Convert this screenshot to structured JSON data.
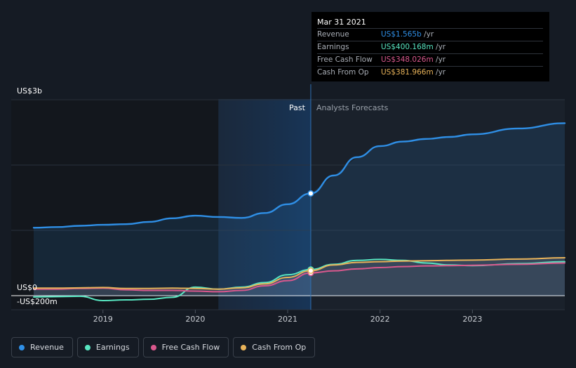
{
  "chart_data": {
    "type": "line",
    "y_axis_labels": [
      {
        "text": "US$3b",
        "value": 3000
      },
      {
        "text": "US$0",
        "value": 0
      },
      {
        "text": "-US$200m",
        "value": -200
      }
    ],
    "ylim": [
      -200,
      3000
    ],
    "gridline_values": [
      3000,
      2000,
      1000,
      0
    ],
    "x_ticks": [
      "2019",
      "2020",
      "2021",
      "2022",
      "2023"
    ],
    "x_tick_values": [
      2019.0,
      2020.0,
      2021.0,
      2022.0,
      2023.0
    ],
    "xlim": [
      2018.0,
      2024.0
    ],
    "divider_x": 2021.25,
    "highlight_start_x": 2020.25,
    "past_label": "Past",
    "forecast_label": "Analysts Forecasts",
    "grid": true,
    "series": [
      {
        "name": "Revenue",
        "color": "#2f8fe6",
        "area": true,
        "points": [
          [
            2018.25,
            1040
          ],
          [
            2018.5,
            1050
          ],
          [
            2018.75,
            1070
          ],
          [
            2019.0,
            1085
          ],
          [
            2019.25,
            1095
          ],
          [
            2019.5,
            1130
          ],
          [
            2019.75,
            1185
          ],
          [
            2020.0,
            1225
          ],
          [
            2020.25,
            1205
          ],
          [
            2020.5,
            1190
          ],
          [
            2020.75,
            1265
          ],
          [
            2021.0,
            1400
          ],
          [
            2021.25,
            1565
          ],
          [
            2021.5,
            1840
          ],
          [
            2021.75,
            2120
          ],
          [
            2022.0,
            2290
          ],
          [
            2022.25,
            2360
          ],
          [
            2022.5,
            2400
          ],
          [
            2022.75,
            2430
          ],
          [
            2023.0,
            2470
          ],
          [
            2023.5,
            2560
          ],
          [
            2024.0,
            2640
          ]
        ]
      },
      {
        "name": "Earnings",
        "color": "#58e6c1",
        "area": false,
        "points": [
          [
            2018.25,
            -20
          ],
          [
            2018.5,
            -15
          ],
          [
            2018.75,
            -10
          ],
          [
            2019.0,
            -75
          ],
          [
            2019.25,
            -65
          ],
          [
            2019.5,
            -55
          ],
          [
            2019.75,
            -25
          ],
          [
            2020.0,
            130
          ],
          [
            2020.25,
            100
          ],
          [
            2020.5,
            130
          ],
          [
            2020.75,
            200
          ],
          [
            2021.0,
            320
          ],
          [
            2021.25,
            400.168
          ],
          [
            2021.5,
            480
          ],
          [
            2021.75,
            540
          ],
          [
            2022.0,
            555
          ],
          [
            2022.25,
            540
          ],
          [
            2022.5,
            500
          ],
          [
            2022.75,
            470
          ],
          [
            2023.0,
            460
          ],
          [
            2023.5,
            490
          ],
          [
            2024.0,
            520
          ]
        ]
      },
      {
        "name": "Free Cash Flow",
        "color": "#d9588d",
        "area": false,
        "points": [
          [
            2018.25,
            100
          ],
          [
            2018.5,
            100
          ],
          [
            2018.75,
            110
          ],
          [
            2019.0,
            115
          ],
          [
            2019.25,
            90
          ],
          [
            2019.5,
            80
          ],
          [
            2019.75,
            80
          ],
          [
            2020.0,
            70
          ],
          [
            2020.25,
            60
          ],
          [
            2020.5,
            80
          ],
          [
            2020.75,
            150
          ],
          [
            2021.0,
            230
          ],
          [
            2021.25,
            348.026
          ],
          [
            2021.5,
            380
          ],
          [
            2021.75,
            410
          ],
          [
            2022.0,
            430
          ],
          [
            2022.25,
            445
          ],
          [
            2022.5,
            455
          ],
          [
            2022.75,
            460
          ],
          [
            2023.0,
            465
          ],
          [
            2023.5,
            480
          ],
          [
            2024.0,
            500
          ]
        ]
      },
      {
        "name": "Cash From Op",
        "color": "#e8b35a",
        "area": false,
        "points": [
          [
            2018.25,
            115
          ],
          [
            2018.5,
            115
          ],
          [
            2018.75,
            120
          ],
          [
            2019.0,
            125
          ],
          [
            2019.25,
            110
          ],
          [
            2019.5,
            110
          ],
          [
            2019.75,
            115
          ],
          [
            2020.0,
            110
          ],
          [
            2020.25,
            100
          ],
          [
            2020.5,
            120
          ],
          [
            2020.75,
            180
          ],
          [
            2021.0,
            280
          ],
          [
            2021.25,
            381.966
          ],
          [
            2021.5,
            470
          ],
          [
            2021.75,
            510
          ],
          [
            2022.0,
            520
          ],
          [
            2022.25,
            530
          ],
          [
            2022.5,
            535
          ],
          [
            2022.75,
            540
          ],
          [
            2023.0,
            545
          ],
          [
            2023.5,
            560
          ],
          [
            2024.0,
            580
          ]
        ]
      }
    ]
  },
  "tooltip": {
    "date": "Mar 31 2021",
    "rows": [
      {
        "label": "Revenue",
        "value": "US$1.565b",
        "unit": "/yr",
        "color": "#2f8fe6"
      },
      {
        "label": "Earnings",
        "value": "US$400.168m",
        "unit": "/yr",
        "color": "#58e6c1"
      },
      {
        "label": "Free Cash Flow",
        "value": "US$348.026m",
        "unit": "/yr",
        "color": "#d9588d"
      },
      {
        "label": "Cash From Op",
        "value": "US$381.966m",
        "unit": "/yr",
        "color": "#e8b35a"
      }
    ]
  },
  "legend": [
    {
      "label": "Revenue",
      "color": "#2f8fe6"
    },
    {
      "label": "Earnings",
      "color": "#58e6c1"
    },
    {
      "label": "Free Cash Flow",
      "color": "#d9588d"
    },
    {
      "label": "Cash From Op",
      "color": "#e8b35a"
    }
  ]
}
